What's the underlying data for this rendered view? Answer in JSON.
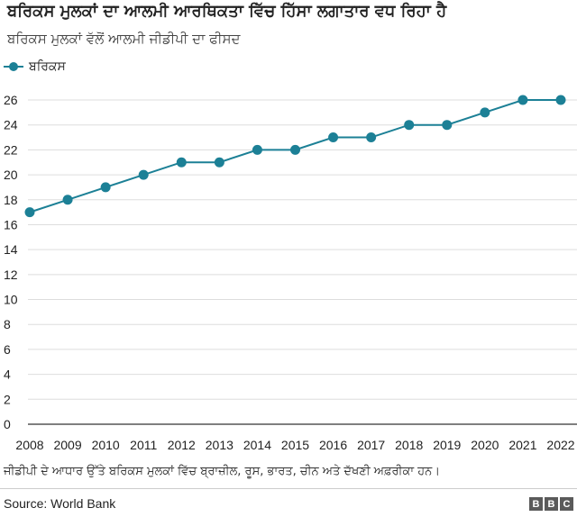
{
  "chart_data": {
    "type": "line",
    "title": "ਬਰਿਕਸ ਮੁਲਕਾਂ ਦਾ ਆਲਮੀ ਆਰਥਿਕਤਾ ਵਿੱਚ ਹਿੱਸਾ ਲਗਾਤਾਰ ਵਧ ਰਿਹਾ ਹੈ",
    "subtitle": "ਬਰਿਕਸ ਮੁਲਕਾਂ ਵੱਲੋਂ ਆਲਮੀ ਜੀਡੀਪੀ ਦਾ ਫੀਸਦ",
    "x": [
      "2008",
      "2009",
      "2010",
      "2011",
      "2012",
      "2013",
      "2014",
      "2015",
      "2016",
      "2017",
      "2018",
      "2019",
      "2020",
      "2021",
      "2022"
    ],
    "series": [
      {
        "name": "ਬਰਿਕਸ",
        "values": [
          17,
          18,
          19,
          20,
          21,
          21,
          22,
          22,
          23,
          23,
          24,
          24,
          25,
          26,
          26
        ]
      }
    ],
    "ylim": [
      0,
      26
    ],
    "yticks": [
      0,
      2,
      4,
      6,
      8,
      10,
      12,
      14,
      16,
      18,
      20,
      22,
      24,
      26
    ],
    "grid": true,
    "legend_position": "top-left",
    "colors": {
      "series": "#1c8096",
      "grid": "#dddddd",
      "axis": "#333333"
    }
  },
  "footnote": "ਜੀਡੀਪੀ ਦੇ ਆਧਾਰ ਉੱਤੇ ਬਰਿਕਸ ਮੁਲਕਾਂ ਵਿੱਚ ਬ੍ਰਾਜ਼ੀਲ, ਰੂਸ, ਭਾਰਤ, ਚੀਨ ਅਤੇ ਦੱਖਣੀ ਅਫ਼ਰੀਕਾ ਹਨ।",
  "source": "Source: World Bank",
  "logo": [
    "B",
    "B",
    "C"
  ]
}
